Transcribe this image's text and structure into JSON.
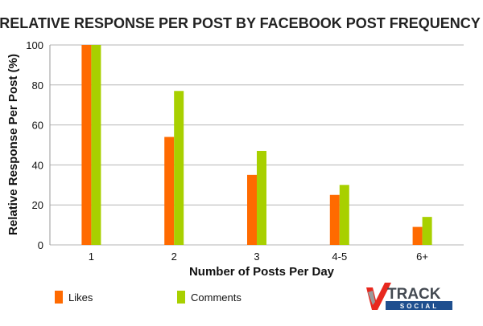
{
  "chart_data": {
    "type": "bar",
    "title": "RELATIVE RESPONSE PER POST BY FACEBOOK POST FREQUENCY",
    "xlabel": "Number of Posts Per Day",
    "ylabel": "Relative Response Per Post (%)",
    "categories": [
      "1",
      "2",
      "3",
      "4-5",
      "6+"
    ],
    "series": [
      {
        "name": "Likes",
        "values": [
          100,
          54,
          35,
          25,
          9
        ]
      },
      {
        "name": "Comments",
        "values": [
          100,
          77,
          47,
          30,
          14
        ]
      }
    ],
    "ylim": [
      0,
      100
    ],
    "yticks": [
      0,
      20,
      40,
      60,
      80,
      100
    ],
    "grid": true,
    "legend_position": "bottom-left"
  },
  "colors": {
    "likes": "#ff6a00",
    "comments": "#a8d000",
    "grid": "#b5b5b5"
  },
  "logo": {
    "line1": "TRACK",
    "line2": "SOCIAL"
  }
}
